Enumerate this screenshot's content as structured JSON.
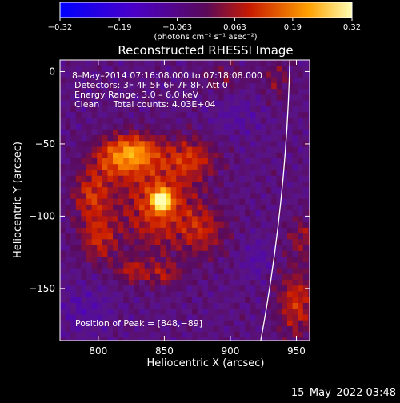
{
  "chart_data": {
    "type": "heatmap",
    "title": "Reconstructed RHESSI Image",
    "xlabel": "Heliocentric X (arcsec)",
    "ylabel": "Heliocentric Y (arcsec)",
    "xlim": [
      771,
      960
    ],
    "ylim": [
      -186,
      8
    ],
    "xticks": [
      800,
      850,
      900,
      950
    ],
    "yticks": [
      0,
      -50,
      -100,
      -150
    ],
    "colorbar": {
      "ticks": [
        -0.32,
        -0.19,
        -0.063,
        0.063,
        0.19,
        0.32
      ],
      "tick_labels": [
        "−0.32",
        "−0.19",
        "−0.063",
        "0.063",
        "0.19",
        "0.32"
      ],
      "range": [
        -0.32,
        0.32
      ],
      "unit_label": "(photons cm⁻² s⁻¹ asec⁻²)"
    },
    "annotations": [
      "8–May–2014 07:16:08.000 to 07:18:08.000",
      "Detectors: 3F 4F 5F 6F 7F 8F, Att 0",
      "Energy Range: 3.0 – 6.0 keV",
      "Clean     Total counts: 4.03E+04"
    ],
    "peak_label": "Position of Peak = [848,−89]",
    "peak": {
      "x": 848,
      "y": -89,
      "value": 0.32
    },
    "blobs": [
      {
        "x": 848,
        "y": -89,
        "sx": 5,
        "sy": 5,
        "amp": 0.32
      },
      {
        "x": 845,
        "y": -92,
        "sx": 20,
        "sy": 22,
        "amp": 0.15
      },
      {
        "x": 815,
        "y": -60,
        "sx": 14,
        "sy": 10,
        "amp": 0.16
      },
      {
        "x": 830,
        "y": -55,
        "sx": 12,
        "sy": 8,
        "amp": 0.14
      },
      {
        "x": 795,
        "y": -85,
        "sx": 10,
        "sy": 12,
        "amp": 0.13
      },
      {
        "x": 800,
        "y": -115,
        "sx": 10,
        "sy": 12,
        "amp": 0.12
      },
      {
        "x": 870,
        "y": -60,
        "sx": 14,
        "sy": 10,
        "amp": 0.12
      },
      {
        "x": 880,
        "y": -110,
        "sx": 12,
        "sy": 12,
        "amp": 0.1
      },
      {
        "x": 850,
        "y": -140,
        "sx": 10,
        "sy": 6,
        "amp": 0.09
      },
      {
        "x": 825,
        "y": -138,
        "sx": 8,
        "sy": 6,
        "amp": 0.1
      },
      {
        "x": 895,
        "y": -5,
        "sx": 12,
        "sy": 8,
        "amp": 0.05
      },
      {
        "x": 950,
        "y": -160,
        "sx": 10,
        "sy": 16,
        "amp": 0.13
      },
      {
        "x": 955,
        "y": -115,
        "sx": 8,
        "sy": 10,
        "amp": 0.08
      },
      {
        "x": 935,
        "y": -5,
        "sx": 8,
        "sy": 10,
        "amp": 0.06
      },
      {
        "x": 920,
        "y": -130,
        "sx": 8,
        "sy": 10,
        "amp": -0.05
      },
      {
        "x": 905,
        "y": -30,
        "sx": 14,
        "sy": 12,
        "amp": -0.04
      },
      {
        "x": 790,
        "y": -165,
        "sx": 14,
        "sy": 12,
        "amp": -0.05
      }
    ],
    "limb": {
      "x_top": 945,
      "x_bottom": 923
    },
    "grid": false
  },
  "footer": {
    "timestamp": "15–May–2022 03:48"
  }
}
